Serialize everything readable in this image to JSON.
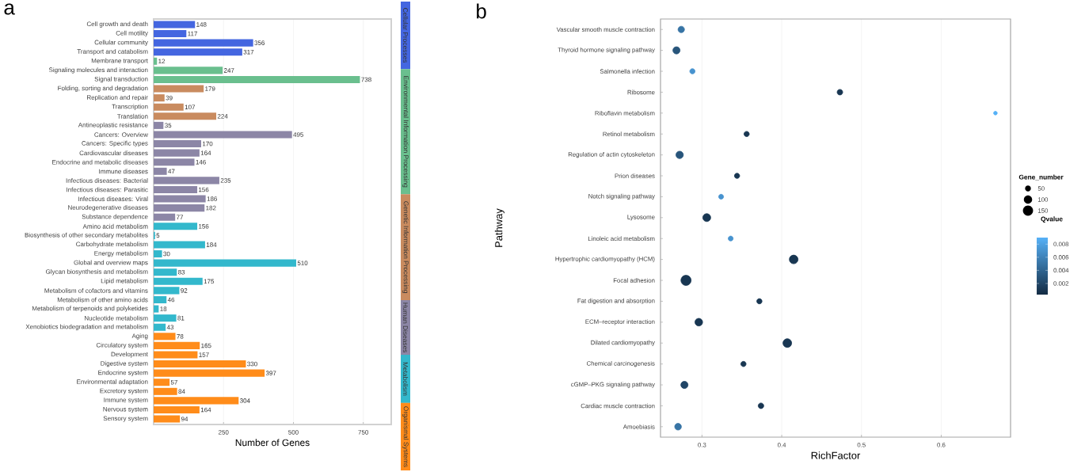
{
  "chart_data": [
    {
      "type": "bar",
      "title": "a",
      "xlabel": "Number of Genes",
      "orientation": "horizontal",
      "data_labels": true,
      "grid": "x",
      "legend": "right",
      "categories": [
        "Cell growth and death",
        "Cell motility",
        "Cellular community",
        "Transport and catabolism",
        "Membrane transport",
        "Signaling molecules and interaction",
        "Signal transduction",
        "Folding, sorting and degradation",
        "Replication and repair",
        "Transcription",
        "Translation",
        "Antineoplastic resistance",
        "Cancers: Overview",
        "Cancers: Specific types",
        "Cardiovascular diseases",
        "Endocrine and metabolic diseases",
        "Immune diseases",
        "Infectious diseases: Bacterial",
        "Infectious diseases: Parasitic",
        "Infectious diseases: Viral",
        "Neurodegenerative diseases",
        "Substance dependence",
        "Amino acid metabolism",
        "Biosynthesis of other secondary metabolites",
        "Carbohydrate metabolism",
        "Energy metabolism",
        "Global and overview maps",
        "Glycan biosynthesis and metabolism",
        "Lipid metabolism",
        "Metabolism of cofactors and vitamins",
        "Metabolism of other amino acids",
        "Metabolism of terpenoids and polyketides",
        "Nucleotide metabolism",
        "Xenobiotics biodegradation and metabolism",
        "Aging",
        "Circulatory system",
        "Development",
        "Digestive system",
        "Endocrine system",
        "Environmental adaptation",
        "Excretory system",
        "Immune system",
        "Nervous system",
        "Sensory system"
      ],
      "xlim": [
        0,
        850
      ],
      "xticks": [
        250,
        500,
        750
      ],
      "series": [
        {
          "name": "Cellular Processes",
          "color": "#4466e0",
          "values": [
            148,
            117,
            356,
            317,
            null,
            null,
            null,
            null,
            null,
            null,
            null,
            null,
            null,
            null,
            null,
            null,
            null,
            null,
            null,
            null,
            null,
            null,
            null,
            null,
            null,
            null,
            null,
            null,
            null,
            null,
            null,
            null,
            null,
            null,
            null,
            null,
            null,
            null,
            null,
            null,
            null,
            null,
            null,
            null
          ]
        },
        {
          "name": "Environmental Information Processing",
          "color": "#6abf8e",
          "values": [
            null,
            null,
            null,
            null,
            12,
            247,
            738,
            null,
            null,
            null,
            null,
            null,
            null,
            null,
            null,
            null,
            null,
            null,
            null,
            null,
            null,
            null,
            null,
            null,
            null,
            null,
            null,
            null,
            null,
            null,
            null,
            null,
            null,
            null,
            null,
            null,
            null,
            null,
            null,
            null,
            null,
            null,
            null,
            null
          ]
        },
        {
          "name": "Genetic Information Processing",
          "color": "#c98b5f",
          "values": [
            null,
            null,
            null,
            null,
            null,
            null,
            null,
            179,
            39,
            107,
            224,
            null,
            null,
            null,
            null,
            null,
            null,
            null,
            null,
            null,
            null,
            null,
            null,
            null,
            null,
            null,
            null,
            null,
            null,
            null,
            null,
            null,
            null,
            null,
            null,
            null,
            null,
            null,
            null,
            null,
            null,
            null,
            null,
            null
          ]
        },
        {
          "name": "Human Diseases",
          "color": "#8c86a6",
          "values": [
            null,
            null,
            null,
            null,
            null,
            null,
            null,
            null,
            null,
            null,
            null,
            35,
            495,
            170,
            164,
            146,
            47,
            235,
            156,
            186,
            182,
            77,
            null,
            null,
            null,
            null,
            null,
            null,
            null,
            null,
            null,
            null,
            null,
            null,
            null,
            null,
            null,
            null,
            null,
            null,
            null,
            null,
            null,
            null
          ]
        },
        {
          "name": "Metabolism",
          "color": "#33b8cc",
          "values": [
            null,
            null,
            null,
            null,
            null,
            null,
            null,
            null,
            null,
            null,
            null,
            null,
            null,
            null,
            null,
            null,
            null,
            null,
            null,
            null,
            null,
            null,
            156,
            5,
            184,
            30,
            510,
            83,
            175,
            92,
            46,
            18,
            81,
            43,
            null,
            null,
            null,
            null,
            null,
            null,
            null,
            null,
            null,
            null
          ]
        },
        {
          "name": "Organismal Systems",
          "color": "#ff8c1a",
          "values": [
            null,
            null,
            null,
            null,
            null,
            null,
            null,
            null,
            null,
            null,
            null,
            null,
            null,
            null,
            null,
            null,
            null,
            null,
            null,
            null,
            null,
            null,
            null,
            null,
            null,
            null,
            null,
            null,
            null,
            null,
            null,
            null,
            null,
            null,
            78,
            165,
            157,
            330,
            397,
            57,
            84,
            304,
            164,
            94
          ]
        }
      ]
    },
    {
      "type": "bubble",
      "title": "b",
      "xlabel": "RichFactor",
      "ylabel": "Pathway",
      "orientation": "horizontal",
      "grid": "x",
      "legend_title": "Gene_number",
      "clabel": "Qvalue",
      "categories": [
        "Vascular smooth muscle contraction",
        "Thyroid hormone signaling pathway",
        "Salmonella infection",
        "Ribosome",
        "Riboflavin metabolism",
        "Retinol metabolism",
        "Regulation of actin cytoskeleton",
        "Prion diseases",
        "Notch signaling pathway",
        "Lysosome",
        "Linoleic acid metabolism",
        "Hypertrophic cardiomyopathy (HCM)",
        "Focal adhesion",
        "Fat digestion and absorption",
        "ECM–receptor interaction",
        "Dilated cardiomyopathy",
        "Chemical carcinogenesis",
        "cGMP–PKG signaling pathway",
        "Cardiac muscle contraction",
        "Amoebiasis"
      ],
      "values": [
        0.274,
        0.268,
        0.288,
        0.473,
        0.668,
        0.356,
        0.272,
        0.344,
        0.324,
        0.306,
        0.336,
        0.415,
        0.28,
        0.372,
        0.296,
        0.407,
        0.352,
        0.278,
        0.374,
        0.27
      ],
      "sizes": [
        60,
        75,
        40,
        45,
        20,
        40,
        80,
        40,
        35,
        90,
        35,
        110,
        150,
        40,
        85,
        110,
        40,
        75,
        45,
        65
      ],
      "size_legend": [
        50,
        100,
        150
      ],
      "cvalues": [
        0.005,
        0.003,
        0.007,
        0.001,
        0.009,
        0.001,
        0.003,
        0.001,
        0.007,
        0.001,
        0.007,
        0.001,
        0.001,
        0.001,
        0.001,
        0.001,
        0.001,
        0.002,
        0.001,
        0.005
      ],
      "clim": [
        0.0003,
        0.009
      ],
      "cticks": [
        0.002,
        0.004,
        0.006,
        0.008
      ],
      "xlim": [
        0.248,
        0.687
      ],
      "xticks": [
        0.3,
        0.4,
        0.5,
        0.6
      ]
    }
  ]
}
